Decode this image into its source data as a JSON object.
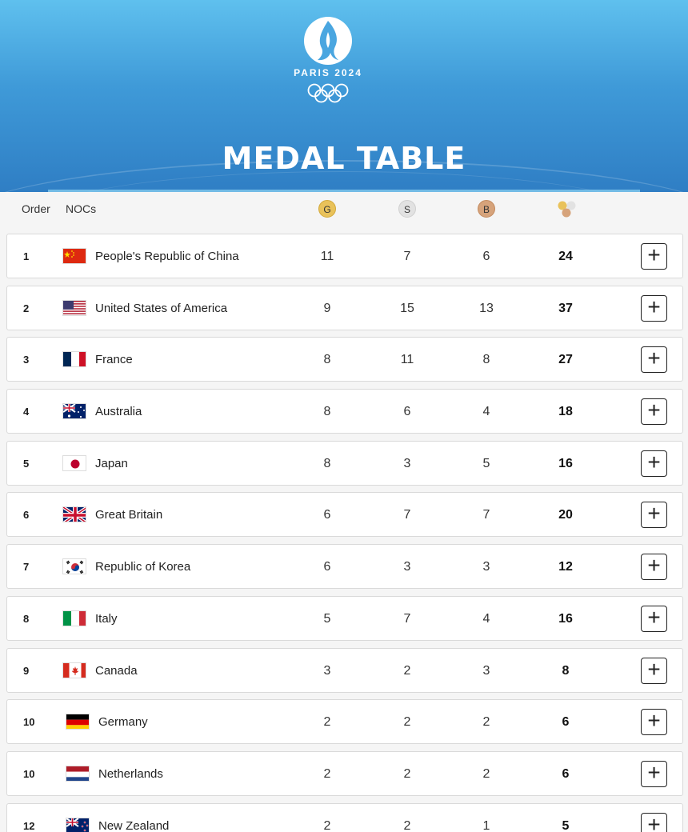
{
  "header": {
    "logo_text": "PARIS 2024",
    "title": "MEDAL TABLE"
  },
  "columns": {
    "order": "Order",
    "nocs": "NOCs",
    "gold": "G",
    "silver": "S",
    "bronze": "B"
  },
  "colors": {
    "header_top": "#5fc0ee",
    "header_bottom": "#2f7ec4",
    "gold": "#e9c25a",
    "silver": "#e2e2e2",
    "bronze": "#d6a37b"
  },
  "rows": [
    {
      "order": "1",
      "flag": "china",
      "name": "People's Republic of China",
      "gold": "11",
      "silver": "7",
      "bronze": "6",
      "total": "24"
    },
    {
      "order": "2",
      "flag": "usa",
      "name": "United States of America",
      "gold": "9",
      "silver": "15",
      "bronze": "13",
      "total": "37"
    },
    {
      "order": "3",
      "flag": "france",
      "name": "France",
      "gold": "8",
      "silver": "11",
      "bronze": "8",
      "total": "27"
    },
    {
      "order": "4",
      "flag": "australia",
      "name": "Australia",
      "gold": "8",
      "silver": "6",
      "bronze": "4",
      "total": "18"
    },
    {
      "order": "5",
      "flag": "japan",
      "name": "Japan",
      "gold": "8",
      "silver": "3",
      "bronze": "5",
      "total": "16"
    },
    {
      "order": "6",
      "flag": "great-britain",
      "name": "Great Britain",
      "gold": "6",
      "silver": "7",
      "bronze": "7",
      "total": "20"
    },
    {
      "order": "7",
      "flag": "korea",
      "name": "Republic of Korea",
      "gold": "6",
      "silver": "3",
      "bronze": "3",
      "total": "12"
    },
    {
      "order": "8",
      "flag": "italy",
      "name": "Italy",
      "gold": "5",
      "silver": "7",
      "bronze": "4",
      "total": "16"
    },
    {
      "order": "9",
      "flag": "canada",
      "name": "Canada",
      "gold": "3",
      "silver": "2",
      "bronze": "3",
      "total": "8"
    },
    {
      "order": "10",
      "flag": "germany",
      "name": "Germany",
      "gold": "2",
      "silver": "2",
      "bronze": "2",
      "total": "6"
    },
    {
      "order": "10",
      "flag": "netherlands",
      "name": "Netherlands",
      "gold": "2",
      "silver": "2",
      "bronze": "2",
      "total": "6"
    },
    {
      "order": "12",
      "flag": "new-zealand",
      "name": "New Zealand",
      "gold": "2",
      "silver": "2",
      "bronze": "1",
      "total": "5"
    }
  ]
}
